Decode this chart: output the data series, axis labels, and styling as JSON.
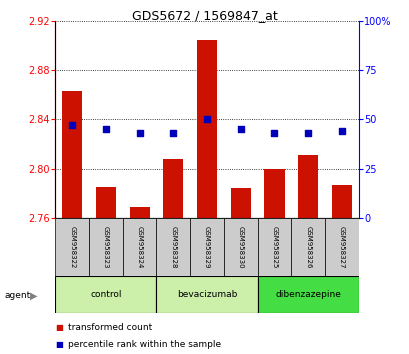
{
  "title": "GDS5672 / 1569847_at",
  "samples": [
    "GSM958322",
    "GSM958323",
    "GSM958324",
    "GSM958328",
    "GSM958329",
    "GSM958330",
    "GSM958325",
    "GSM958326",
    "GSM958327"
  ],
  "transformed_count": [
    2.863,
    2.785,
    2.769,
    2.808,
    2.905,
    2.784,
    2.8,
    2.811,
    2.787
  ],
  "percentile_rank": [
    47,
    45,
    43,
    43,
    50,
    45,
    43,
    43,
    44
  ],
  "groups": [
    {
      "label": "control",
      "indices": [
        0,
        1,
        2
      ],
      "color": "#ccf0aa"
    },
    {
      "label": "bevacizumab",
      "indices": [
        3,
        4,
        5
      ],
      "color": "#ccf0aa"
    },
    {
      "label": "dibenzazepine",
      "indices": [
        6,
        7,
        8
      ],
      "color": "#44dd44"
    }
  ],
  "ylim_left": [
    2.76,
    2.92
  ],
  "ylim_right": [
    0,
    100
  ],
  "yticks_left": [
    2.76,
    2.8,
    2.84,
    2.88,
    2.92
  ],
  "yticks_right": [
    0,
    25,
    50,
    75,
    100
  ],
  "ytick_labels_right": [
    "0",
    "25",
    "50",
    "75",
    "100%"
  ],
  "bar_color": "#cc1100",
  "dot_color": "#0000bb",
  "bar_width": 0.6,
  "background_label": "#cccccc",
  "legend_items": [
    {
      "label": "transformed count",
      "color": "#cc1100"
    },
    {
      "label": "percentile rank within the sample",
      "color": "#0000bb"
    }
  ]
}
